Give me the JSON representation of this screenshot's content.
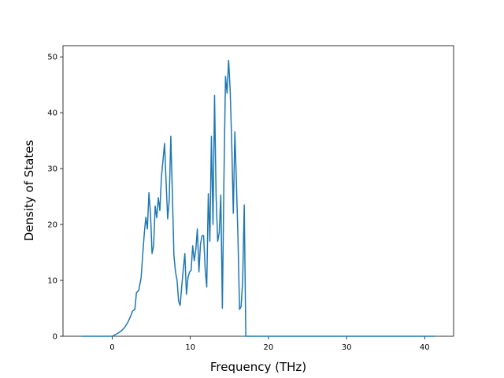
{
  "chart_data": {
    "type": "line",
    "title": "",
    "xlabel": "Frequency (THz)",
    "ylabel": "Density of States",
    "xlim": [
      -6.3,
      43.7
    ],
    "ylim": [
      0,
      52
    ],
    "xticks": [
      0,
      10,
      20,
      30,
      40
    ],
    "yticks": [
      0,
      10,
      20,
      30,
      40,
      50
    ],
    "grid": false,
    "legend": "none",
    "color": "#1f77b4",
    "series": [
      {
        "points": [
          [
            -3.9,
            0
          ],
          [
            0.0,
            0
          ],
          [
            0.4,
            0.3
          ],
          [
            0.8,
            0.6
          ],
          [
            1.2,
            1.0
          ],
          [
            1.6,
            1.6
          ],
          [
            2.0,
            2.5
          ],
          [
            2.3,
            3.4
          ],
          [
            2.6,
            4.5
          ],
          [
            2.9,
            4.8
          ],
          [
            3.1,
            7.8
          ],
          [
            3.4,
            8.2
          ],
          [
            3.7,
            10.5
          ],
          [
            3.9,
            14.5
          ],
          [
            4.1,
            18.3
          ],
          [
            4.3,
            21.3
          ],
          [
            4.5,
            19.2
          ],
          [
            4.7,
            25.7
          ],
          [
            4.9,
            22.0
          ],
          [
            5.1,
            14.8
          ],
          [
            5.3,
            16.2
          ],
          [
            5.5,
            23.3
          ],
          [
            5.7,
            21.2
          ],
          [
            5.9,
            24.8
          ],
          [
            6.1,
            22.5
          ],
          [
            6.3,
            28.5
          ],
          [
            6.5,
            31.5
          ],
          [
            6.7,
            34.5
          ],
          [
            6.9,
            27.5
          ],
          [
            7.1,
            21.0
          ],
          [
            7.3,
            24.5
          ],
          [
            7.5,
            35.8
          ],
          [
            7.7,
            25.5
          ],
          [
            7.9,
            14.5
          ],
          [
            8.1,
            11.5
          ],
          [
            8.3,
            10.0
          ],
          [
            8.5,
            6.3
          ],
          [
            8.7,
            5.5
          ],
          [
            8.9,
            9.0
          ],
          [
            9.1,
            12.0
          ],
          [
            9.3,
            14.8
          ],
          [
            9.5,
            7.5
          ],
          [
            9.7,
            10.5
          ],
          [
            9.9,
            11.5
          ],
          [
            10.1,
            11.8
          ],
          [
            10.3,
            16.2
          ],
          [
            10.5,
            13.5
          ],
          [
            10.7,
            15.5
          ],
          [
            10.9,
            19.2
          ],
          [
            11.1,
            11.5
          ],
          [
            11.3,
            16.5
          ],
          [
            11.5,
            18.0
          ],
          [
            11.7,
            18.0
          ],
          [
            11.9,
            12.0
          ],
          [
            12.1,
            8.8
          ],
          [
            12.3,
            25.5
          ],
          [
            12.5,
            17.0
          ],
          [
            12.7,
            35.8
          ],
          [
            12.9,
            20.0
          ],
          [
            13.1,
            43.1
          ],
          [
            13.3,
            25.0
          ],
          [
            13.5,
            17.0
          ],
          [
            13.7,
            18.5
          ],
          [
            13.9,
            25.3
          ],
          [
            14.1,
            5.0
          ],
          [
            14.3,
            28.0
          ],
          [
            14.5,
            46.5
          ],
          [
            14.7,
            43.5
          ],
          [
            14.9,
            49.4
          ],
          [
            15.1,
            44.0
          ],
          [
            15.3,
            34.5
          ],
          [
            15.5,
            22.0
          ],
          [
            15.7,
            36.6
          ],
          [
            15.9,
            27.5
          ],
          [
            16.1,
            17.5
          ],
          [
            16.3,
            4.8
          ],
          [
            16.5,
            5.3
          ],
          [
            16.7,
            10.0
          ],
          [
            16.9,
            23.5
          ],
          [
            17.1,
            0
          ],
          [
            41.3,
            0
          ]
        ]
      }
    ]
  }
}
